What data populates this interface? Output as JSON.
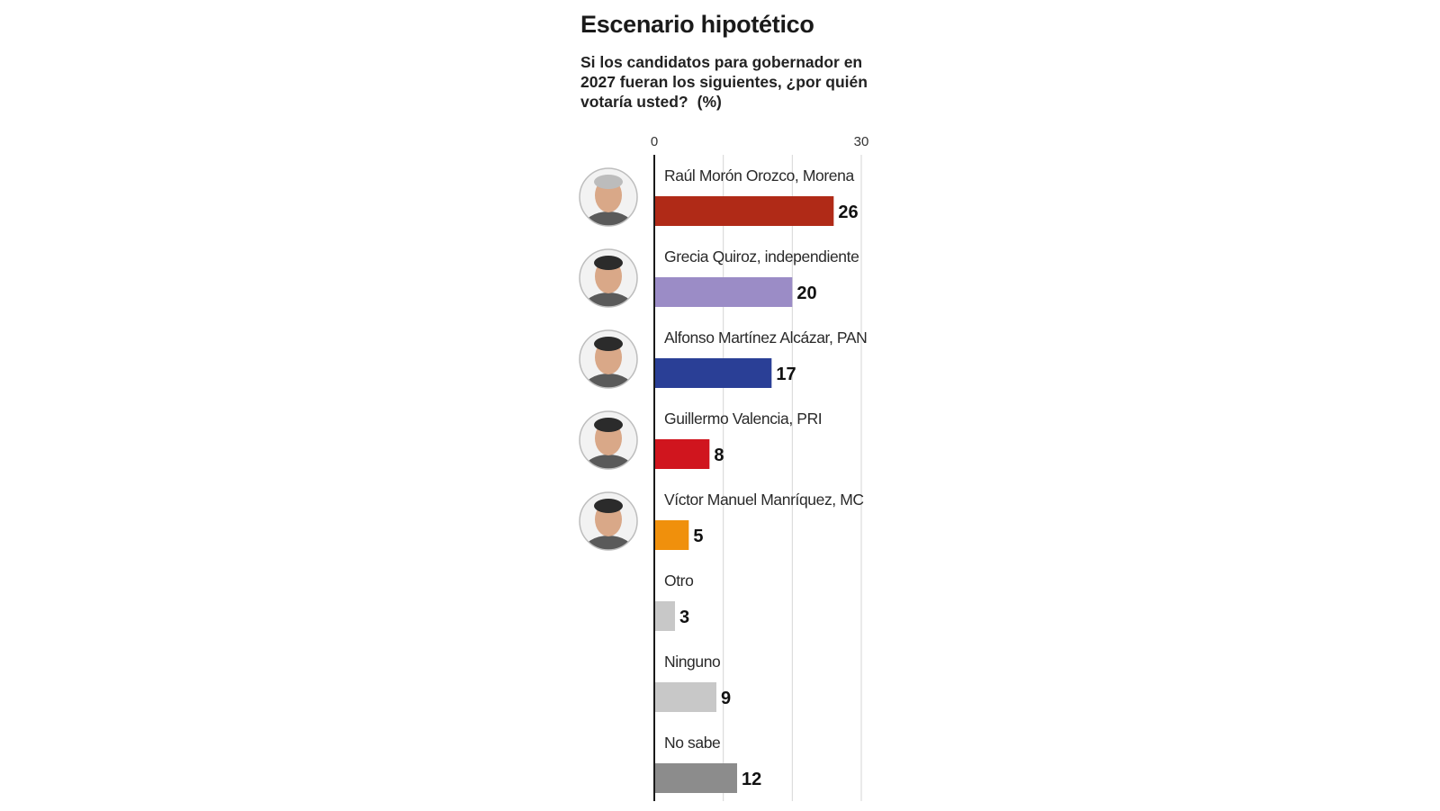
{
  "header": {
    "title": "Escenario hipotético",
    "subtitle": "Si los candidatos para gobernador en 2027 fueran los siguientes, ¿por quién votaría usted?",
    "unit": "(%)"
  },
  "chart_data": {
    "type": "bar",
    "orientation": "horizontal",
    "xlim": [
      0,
      30
    ],
    "x_ticks": [
      0,
      30
    ],
    "grid": true,
    "categories": [
      "Raúl Morón Orozco, Morena",
      "Grecia Quiroz, independiente",
      "Alfonso Martínez Alcázar, PAN",
      "Guillermo Valencia, PRI",
      "Víctor Manuel Manríquez, MC",
      "Otro",
      "Ninguno",
      "No sabe"
    ],
    "values": [
      26,
      20,
      17,
      8,
      5,
      3,
      9,
      12
    ],
    "colors": [
      "#b02a17",
      "#9b8cc6",
      "#2a3f96",
      "#d0151e",
      "#f0900c",
      "#c8c8c8",
      "#c8c8c8",
      "#8c8c8c"
    ],
    "has_photo": [
      true,
      true,
      true,
      true,
      true,
      false,
      false,
      false
    ],
    "photo_icons": [
      "portrait-icon",
      "portrait-icon",
      "portrait-icon",
      "portrait-icon",
      "portrait-icon"
    ]
  }
}
